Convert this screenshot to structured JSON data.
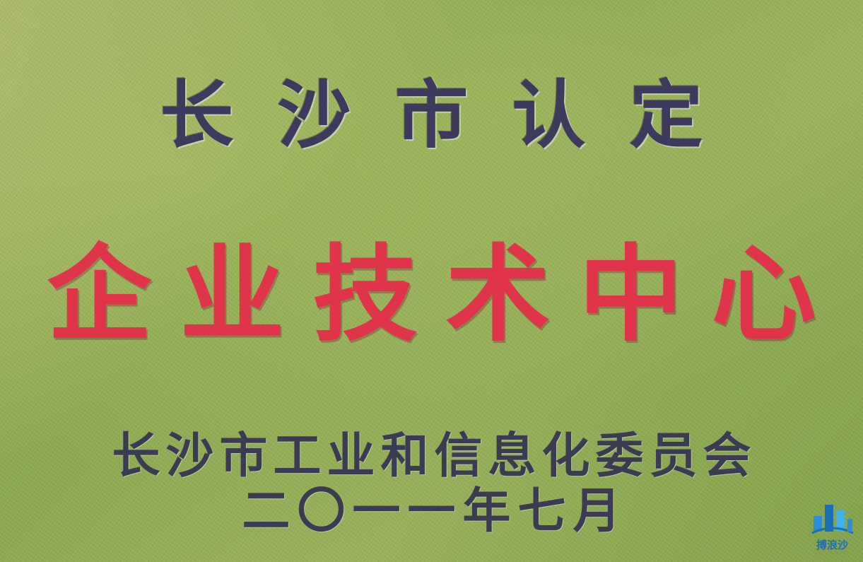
{
  "plaque": {
    "heading": "长沙市认定",
    "title": "企业技术中心",
    "issuer": "长沙市工业和信息化委员会",
    "date": "二〇一一年七月"
  },
  "watermark": {
    "text": "搏浪沙",
    "icon": "building-logo-icon",
    "color": "#1a6fb5"
  },
  "colors": {
    "heading": "#3e3a5e",
    "title": "#e0344a",
    "body": "#3b3b52",
    "background": "#9db35c"
  }
}
